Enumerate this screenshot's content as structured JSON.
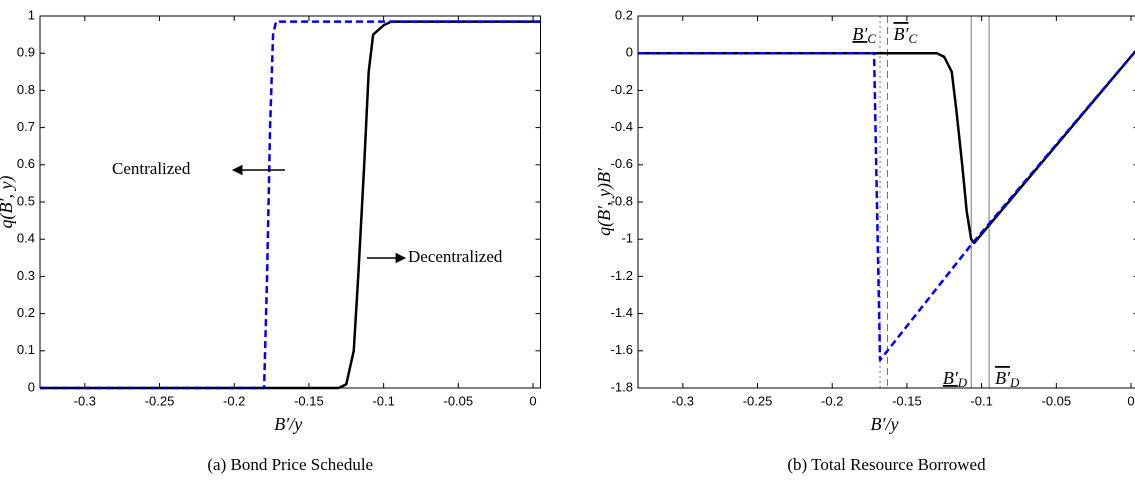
{
  "chart_data": [
    {
      "type": "line",
      "caption": "(a) Bond Price Schedule",
      "xlabel": "B′/y",
      "ylabel": "q(B′, y)",
      "xlim": [
        -0.33,
        0.005
      ],
      "xticks": [
        -0.3,
        -0.25,
        -0.2,
        -0.15,
        -0.1,
        -0.05,
        0
      ],
      "ylim": [
        0,
        1
      ],
      "yticks": [
        0,
        0.1,
        0.2,
        0.3,
        0.4,
        0.5,
        0.6,
        0.7,
        0.8,
        0.9,
        1
      ],
      "series": [
        {
          "name": "Decentralized",
          "color": "#000000",
          "dash": "solid",
          "x": [
            -0.33,
            -0.13,
            -0.125,
            -0.12,
            -0.117,
            -0.113,
            -0.11,
            -0.107,
            -0.1,
            -0.095,
            0.005
          ],
          "values": [
            0,
            0,
            0.01,
            0.1,
            0.3,
            0.6,
            0.85,
            0.95,
            0.975,
            0.985,
            0.985
          ]
        },
        {
          "name": "Centralized",
          "color": "#0000ff",
          "dash": "dashed",
          "x": [
            -0.33,
            -0.18,
            -0.178,
            -0.176,
            -0.174,
            -0.172,
            0.005
          ],
          "values": [
            0,
            0,
            0.3,
            0.7,
            0.95,
            0.985,
            0.985
          ]
        }
      ],
      "annotations": [
        "Centralized",
        "Decentralized"
      ]
    },
    {
      "type": "line",
      "caption": "(b) Total Resource Borrowed",
      "xlabel": "B′/y",
      "ylabel": "q(B′, y)B′",
      "xlim": [
        -0.33,
        0.005
      ],
      "xticks": [
        -0.3,
        -0.25,
        -0.2,
        -0.15,
        -0.1,
        -0.05,
        0
      ],
      "ylim": [
        -1.8,
        0.2
      ],
      "yticks": [
        -1.8,
        -1.6,
        -1.4,
        -1.2,
        -1,
        -0.8,
        -0.6,
        -0.4,
        -0.2,
        0,
        0.2
      ],
      "series": [
        {
          "name": "Decentralized",
          "color": "#000000",
          "dash": "solid",
          "x": [
            -0.33,
            -0.13,
            -0.125,
            -0.12,
            -0.117,
            -0.113,
            -0.11,
            -0.107,
            -0.105,
            0.005
          ],
          "values": [
            0,
            0,
            -0.02,
            -0.1,
            -0.3,
            -0.6,
            -0.85,
            -1,
            -1.02,
            0.03
          ]
        },
        {
          "name": "Centralized",
          "color": "#0000ff",
          "dash": "dashed",
          "x": [
            -0.33,
            -0.172,
            -0.168,
            -0.107,
            0.005
          ],
          "values": [
            0,
            0,
            -1.65,
            -1.03,
            0.03
          ]
        }
      ],
      "vlines": [
        {
          "label": "B′",
          "sub": "C",
          "bar": "under",
          "x": -0.168,
          "style": "dotted"
        },
        {
          "label": "B′",
          "sub": "C",
          "bar": "over",
          "x": -0.163,
          "style": "dashed"
        },
        {
          "label": "B′",
          "sub": "D",
          "bar": "under",
          "x": -0.107,
          "style": "solid"
        },
        {
          "label": "B′",
          "sub": "D",
          "bar": "over",
          "x": -0.095,
          "style": "solid"
        }
      ]
    }
  ]
}
